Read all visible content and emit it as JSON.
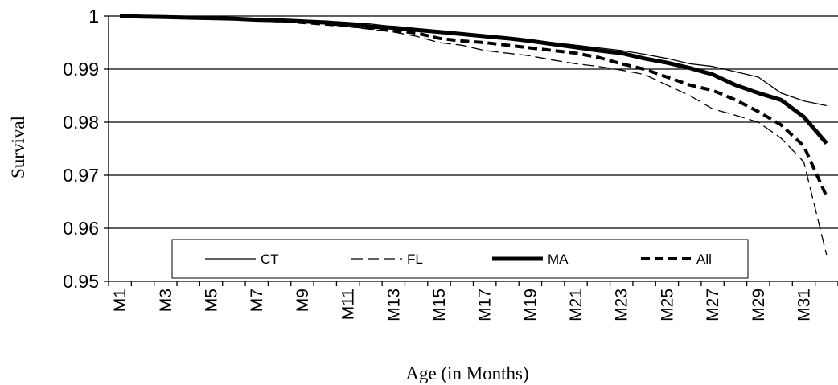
{
  "chart_data": {
    "type": "line",
    "title": "",
    "xlabel": "Age (in Months)",
    "ylabel": "Survival",
    "categories": [
      "M1",
      "M2",
      "M3",
      "M4",
      "M5",
      "M6",
      "M7",
      "M8",
      "M9",
      "M10",
      "M11",
      "M12",
      "M13",
      "M14",
      "M15",
      "M16",
      "M17",
      "M18",
      "M19",
      "M20",
      "M21",
      "M22",
      "M23",
      "M24",
      "M25",
      "M26",
      "M27",
      "M28",
      "M29",
      "M30",
      "M31",
      "M32"
    ],
    "x_tick_labels": [
      "M1",
      "M3",
      "M5",
      "M7",
      "M9",
      "M11",
      "M13",
      "M15",
      "M17",
      "M19",
      "M21",
      "M23",
      "M25",
      "M27",
      "M29",
      "M31"
    ],
    "ylim": [
      0.95,
      1.0
    ],
    "yticks": [
      0.95,
      0.96,
      0.97,
      0.98,
      0.99,
      1
    ],
    "ytick_labels": [
      "0.95",
      "0.96",
      "0.97",
      "0.98",
      "0.99",
      "1"
    ],
    "grid": "horizontal",
    "legend_position": "bottom-inside",
    "series": [
      {
        "name": "CT",
        "style": "thin-solid",
        "color": "#000000",
        "values": [
          1.0,
          1.0,
          0.9999,
          0.9998,
          0.9997,
          0.9996,
          0.9995,
          0.9994,
          0.9992,
          0.999,
          0.9988,
          0.9985,
          0.998,
          0.9975,
          0.997,
          0.9966,
          0.9963,
          0.996,
          0.9955,
          0.995,
          0.9945,
          0.994,
          0.9935,
          0.9928,
          0.992,
          0.991,
          0.9905,
          0.9895,
          0.9885,
          0.9855,
          0.984,
          0.9831
        ]
      },
      {
        "name": "FL",
        "style": "thin-dashed",
        "color": "#000000",
        "values": [
          1.0,
          0.9999,
          0.9998,
          0.9997,
          0.9996,
          0.9994,
          0.9992,
          0.999,
          0.9988,
          0.9985,
          0.998,
          0.9975,
          0.997,
          0.9962,
          0.995,
          0.9945,
          0.9935,
          0.993,
          0.9925,
          0.9917,
          0.991,
          0.9905,
          0.9898,
          0.989,
          0.987,
          0.985,
          0.9825,
          0.9813,
          0.98,
          0.977,
          0.9725,
          0.955
        ]
      },
      {
        "name": "MA",
        "style": "thick-solid",
        "color": "#000000",
        "values": [
          1.0,
          0.9999,
          0.9998,
          0.9997,
          0.9996,
          0.9995,
          0.9993,
          0.9992,
          0.999,
          0.9988,
          0.9985,
          0.998,
          0.9978,
          0.9974,
          0.997,
          0.9966,
          0.9962,
          0.9958,
          0.9953,
          0.9947,
          0.9941,
          0.9935,
          0.993,
          0.992,
          0.9912,
          0.9902,
          0.989,
          0.987,
          0.9855,
          0.9842,
          0.981,
          0.976
        ]
      },
      {
        "name": "All",
        "style": "thick-dashed",
        "color": "#000000",
        "values": [
          1.0,
          0.9999,
          0.9998,
          0.9997,
          0.9996,
          0.9995,
          0.9993,
          0.9991,
          0.9988,
          0.9985,
          0.9982,
          0.9978,
          0.9973,
          0.9968,
          0.9958,
          0.9953,
          0.995,
          0.9945,
          0.994,
          0.9935,
          0.993,
          0.9922,
          0.991,
          0.99,
          0.9885,
          0.987,
          0.986,
          0.9842,
          0.982,
          0.9795,
          0.9755,
          0.966
        ]
      }
    ]
  }
}
